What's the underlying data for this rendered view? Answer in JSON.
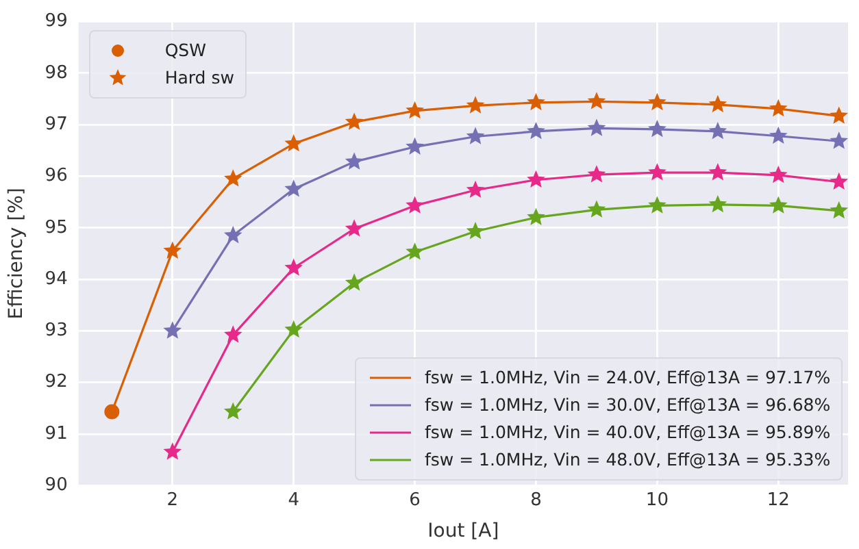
{
  "chart_data": {
    "type": "line",
    "xlabel": "Iout [A]",
    "ylabel": "Efficiency [%]",
    "xlim": [
      0.45,
      13.15
    ],
    "xticks": [
      2,
      4,
      6,
      8,
      10,
      12
    ],
    "ylim": [
      90,
      99
    ],
    "yticks": [
      90,
      91,
      92,
      93,
      94,
      95,
      96,
      97,
      98,
      99
    ],
    "grid": true,
    "legend": "bottom right",
    "line_style": "solid",
    "series": [
      {
        "name": "fsw = 1.0MHz, Vin = 24.0V, Eff@13A = 97.17%",
        "color": "#d95f02",
        "marker": "none",
        "x": [
          1,
          2,
          3,
          4,
          5,
          6,
          7,
          8,
          9,
          10,
          11,
          12,
          13
        ],
        "values": [
          91.43,
          94.55,
          95.95,
          96.63,
          97.05,
          97.27,
          97.37,
          97.43,
          97.45,
          97.43,
          97.39,
          97.31,
          97.17
        ]
      },
      {
        "name": "fsw = 1.0MHz, Vin = 30.0V, Eff@13A = 96.68%",
        "color": "#7570b3",
        "marker": "star",
        "x": [
          2,
          3,
          4,
          5,
          6,
          7,
          8,
          9,
          10,
          11,
          12,
          13
        ],
        "values": [
          93.0,
          94.85,
          95.75,
          96.28,
          96.57,
          96.77,
          96.87,
          96.93,
          96.91,
          96.87,
          96.78,
          96.68
        ]
      },
      {
        "name": "fsw = 1.0MHz, Vin = 40.0V, Eff@13A = 95.89%",
        "color": "#e7298a",
        "marker": "star",
        "x": [
          2,
          3,
          4,
          5,
          6,
          7,
          8,
          9,
          10,
          11,
          12,
          13
        ],
        "values": [
          90.65,
          92.92,
          94.22,
          94.98,
          95.43,
          95.73,
          95.93,
          96.03,
          96.07,
          96.07,
          96.02,
          95.89
        ]
      },
      {
        "name": "fsw = 1.0MHz, Vin = 48.0V, Eff@13A = 95.33%",
        "color": "#66a61e",
        "marker": "star",
        "x": [
          3,
          4,
          5,
          6,
          7,
          8,
          9,
          10,
          11,
          12,
          13
        ],
        "values": [
          91.43,
          93.02,
          93.93,
          94.53,
          94.93,
          95.2,
          95.35,
          95.43,
          95.45,
          95.43,
          95.33
        ]
      },
      {
        "name": "QSW",
        "type": "scatter",
        "color": "#d95f02",
        "marker": "circle",
        "x": [
          1
        ],
        "values": [
          91.43
        ]
      },
      {
        "name": "Hard sw",
        "type": "scatter",
        "color": "#d95f02",
        "marker": "star",
        "x": [
          2,
          3,
          4,
          5,
          6,
          7,
          8,
          9,
          10,
          11,
          12,
          13
        ],
        "values": [
          94.55,
          95.95,
          96.63,
          97.05,
          97.27,
          97.37,
          97.43,
          97.45,
          97.43,
          97.39,
          97.31,
          97.17
        ]
      }
    ]
  }
}
